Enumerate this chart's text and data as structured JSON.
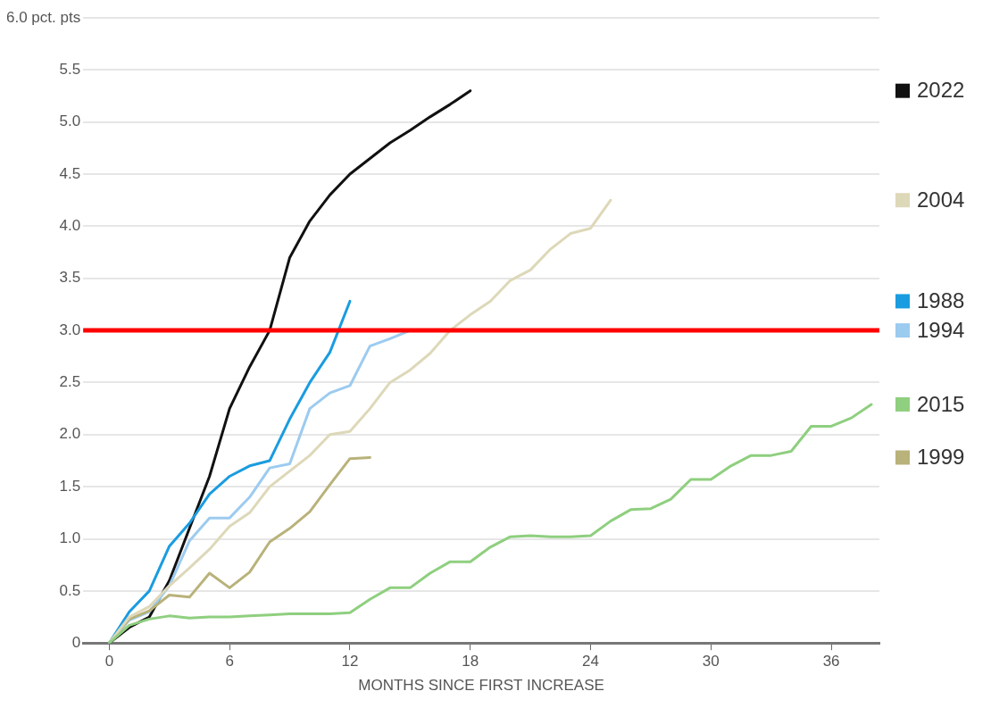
{
  "chart_data": {
    "type": "line",
    "xlabel": "MONTHS SINCE FIRST INCREASE",
    "xlim": [
      -1.3,
      38.4
    ],
    "xticks": [
      0,
      6,
      12,
      18,
      24,
      30,
      36
    ],
    "ylim": [
      0,
      6
    ],
    "yticks": [
      {
        "value": 0,
        "label": "0"
      },
      {
        "value": 0.5,
        "label": "0.5"
      },
      {
        "value": 1,
        "label": "1.0"
      },
      {
        "value": 1.5,
        "label": "1.5"
      },
      {
        "value": 2,
        "label": "2.0"
      },
      {
        "value": 2.5,
        "label": "2.5"
      },
      {
        "value": 3,
        "label": "3.0"
      },
      {
        "value": 3.5,
        "label": "3.5"
      },
      {
        "value": 4,
        "label": "4.0"
      },
      {
        "value": 4.5,
        "label": "4.5"
      },
      {
        "value": 5,
        "label": "5.0"
      },
      {
        "value": 5.5,
        "label": "5.5"
      },
      {
        "value": 6,
        "label": "6.0 pct. pts"
      }
    ],
    "grid": "y",
    "legend": "right",
    "marker": "none",
    "line_style": "solid",
    "ref_lines": [
      {
        "axis": "y",
        "value": 3,
        "color": "#ff0000"
      }
    ],
    "series": [
      {
        "name": "2015",
        "color": "#8fcf7f",
        "x": [
          0,
          1,
          2,
          3,
          4,
          5,
          6,
          7,
          8,
          9,
          10,
          11,
          12,
          13,
          14,
          15,
          16,
          17,
          18,
          19,
          20,
          21,
          22,
          23,
          24,
          25,
          26,
          27,
          28,
          29,
          30,
          31,
          32,
          33,
          34,
          35,
          36,
          37,
          38
        ],
        "values": [
          0,
          0.17,
          0.23,
          0.26,
          0.24,
          0.25,
          0.25,
          0.26,
          0.27,
          0.28,
          0.28,
          0.28,
          0.29,
          0.42,
          0.53,
          0.53,
          0.67,
          0.78,
          0.78,
          0.92,
          1.02,
          1.03,
          1.02,
          1.02,
          1.03,
          1.17,
          1.28,
          1.29,
          1.38,
          1.57,
          1.57,
          1.7,
          1.8,
          1.8,
          1.84,
          2.08,
          2.08,
          2.16,
          2.29
        ]
      },
      {
        "name": "2004",
        "color": "#ddd8b8",
        "x": [
          0,
          1,
          2,
          3,
          4,
          5,
          6,
          7,
          8,
          9,
          10,
          11,
          12,
          13,
          14,
          15,
          16,
          17,
          18,
          19,
          20,
          21,
          22,
          23,
          24,
          25
        ],
        "values": [
          0,
          0.25,
          0.35,
          0.55,
          0.72,
          0.9,
          1.12,
          1.25,
          1.5,
          1.65,
          1.8,
          2.0,
          2.03,
          2.25,
          2.5,
          2.62,
          2.78,
          3.0,
          3.15,
          3.28,
          3.48,
          3.58,
          3.78,
          3.93,
          3.98,
          4.25
        ]
      },
      {
        "name": "1999",
        "color": "#b9b27a",
        "x": [
          0,
          1,
          2,
          3,
          4,
          5,
          6,
          7,
          8,
          9,
          10,
          11,
          12,
          13
        ],
        "values": [
          0,
          0.23,
          0.31,
          0.46,
          0.44,
          0.67,
          0.53,
          0.68,
          0.97,
          1.1,
          1.26,
          1.52,
          1.77,
          1.78
        ]
      },
      {
        "name": "1994",
        "color": "#9ccbf0",
        "x": [
          0,
          1,
          2,
          3,
          4,
          5,
          6,
          7,
          8,
          9,
          10,
          11,
          12,
          13,
          14,
          15
        ],
        "values": [
          0,
          0.22,
          0.3,
          0.55,
          0.98,
          1.2,
          1.2,
          1.4,
          1.68,
          1.72,
          2.25,
          2.4,
          2.47,
          2.85,
          2.92,
          3.0
        ]
      },
      {
        "name": "1988",
        "color": "#1a9ce0",
        "x": [
          0,
          1,
          2,
          3,
          4,
          5,
          6,
          7,
          8,
          9,
          10,
          11,
          12
        ],
        "values": [
          0,
          0.3,
          0.5,
          0.93,
          1.15,
          1.43,
          1.6,
          1.7,
          1.75,
          2.15,
          2.5,
          2.79,
          3.28
        ]
      },
      {
        "name": "2022",
        "color": "#111111",
        "x": [
          0,
          1,
          2,
          3,
          4,
          5,
          6,
          7,
          8,
          9,
          10,
          11,
          12,
          13,
          14,
          15,
          16,
          17,
          18
        ],
        "values": [
          0,
          0.15,
          0.25,
          0.6,
          1.1,
          1.6,
          2.25,
          2.65,
          3.0,
          3.7,
          4.05,
          4.3,
          4.5,
          4.65,
          4.8,
          4.92,
          5.05,
          5.17,
          5.3
        ]
      }
    ]
  }
}
